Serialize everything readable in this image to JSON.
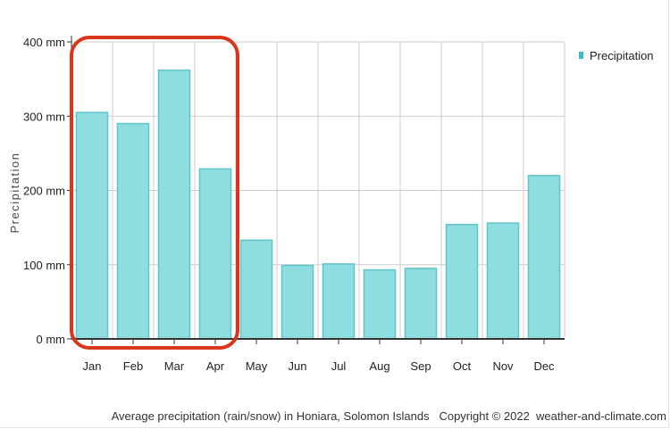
{
  "chart_data": {
    "type": "bar",
    "categories": [
      "Jan",
      "Feb",
      "Mar",
      "Apr",
      "May",
      "Jun",
      "Jul",
      "Aug",
      "Sep",
      "Oct",
      "Nov",
      "Dec"
    ],
    "series": [
      {
        "name": "Precipitation",
        "values": [
          305,
          290,
          362,
          229,
          133,
          99,
          101,
          93,
          95,
          154,
          156,
          220
        ]
      }
    ],
    "ylabel": "Precipitation",
    "xlabel": "",
    "ylim": [
      0,
      400
    ],
    "yticks": [
      0,
      100,
      200,
      300,
      400
    ],
    "ytick_labels": [
      "0 mm",
      "100 mm",
      "200 mm",
      "300 mm",
      "400 mm"
    ],
    "grid": true,
    "legend_position": "top-right",
    "caption": "Average precipitation (rain/snow) in Honiara, Solomon Islands   Copyright © 2022  weather-and-climate.com",
    "highlight": {
      "shape": "rounded-rectangle",
      "color": "#d9361e",
      "categories": [
        "Jan",
        "Feb",
        "Mar",
        "Apr"
      ]
    },
    "colors": {
      "bar_fill": "#8edde0",
      "bar_stroke": "#5ec5ca",
      "legend_marker": "#3cbcc4",
      "grid": "#cccccc",
      "axis": "#333333"
    }
  }
}
